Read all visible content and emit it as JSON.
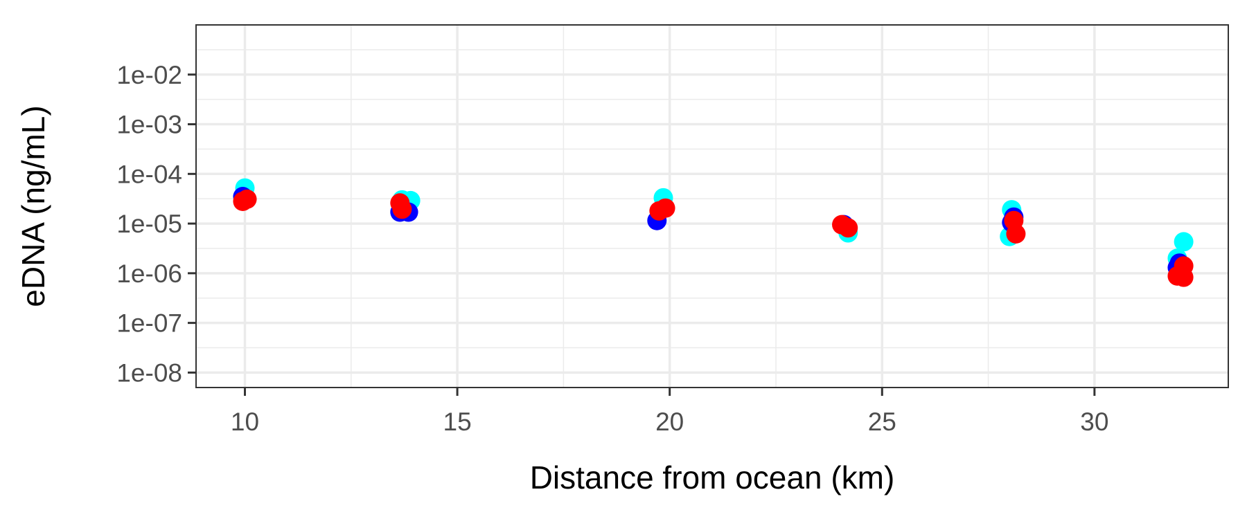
{
  "chart_data": {
    "type": "scatter",
    "title": "",
    "xlabel": "Distance from ocean (km)",
    "ylabel": "eDNA (ng/mL)",
    "x_ticks": [
      10,
      15,
      20,
      25,
      30
    ],
    "x_tick_labels": [
      "10",
      "15",
      "20",
      "25",
      "30"
    ],
    "xlim": [
      8.85,
      33.15
    ],
    "y_scale": "log",
    "y_ticks": [
      1e-08,
      1e-07,
      1e-06,
      1e-05,
      0.0001,
      0.001,
      0.01
    ],
    "y_tick_labels": [
      "1e-08",
      "1e-07",
      "1e-06",
      "1e-05",
      "1e-04",
      "1e-03",
      "1e-02"
    ],
    "ylim": [
      5e-09,
      0.1
    ],
    "grid": true,
    "legend": "none",
    "series": [
      {
        "color": "#00FFFF",
        "points": [
          {
            "x": 10.0,
            "y": 5.2e-05
          },
          {
            "x": 13.7,
            "y": 3e-05
          },
          {
            "x": 13.9,
            "y": 2.9e-05
          },
          {
            "x": 19.85,
            "y": 3.3e-05
          },
          {
            "x": 24.2,
            "y": 6.5e-06
          },
          {
            "x": 28.05,
            "y": 1.9e-05
          },
          {
            "x": 28.0,
            "y": 5.5e-06
          },
          {
            "x": 32.1,
            "y": 4.3e-06
          },
          {
            "x": 31.95,
            "y": 2e-06
          }
        ]
      },
      {
        "color": "#0000FF",
        "points": [
          {
            "x": 9.95,
            "y": 3.5e-05
          },
          {
            "x": 13.65,
            "y": 1.7e-05
          },
          {
            "x": 13.85,
            "y": 1.7e-05
          },
          {
            "x": 19.7,
            "y": 1.15e-05
          },
          {
            "x": 24.1,
            "y": 9.5e-06
          },
          {
            "x": 28.1,
            "y": 1.35e-05
          },
          {
            "x": 28.05,
            "y": 1.05e-05
          },
          {
            "x": 31.95,
            "y": 1.3e-06
          },
          {
            "x": 32.0,
            "y": 1.6e-06
          }
        ]
      },
      {
        "color": "#FF0000",
        "points": [
          {
            "x": 9.95,
            "y": 2.8e-05
          },
          {
            "x": 10.05,
            "y": 3.1e-05
          },
          {
            "x": 13.65,
            "y": 2.6e-05
          },
          {
            "x": 13.7,
            "y": 1.95e-05
          },
          {
            "x": 19.75,
            "y": 1.8e-05
          },
          {
            "x": 19.9,
            "y": 2.05e-05
          },
          {
            "x": 24.05,
            "y": 9.5e-06
          },
          {
            "x": 24.2,
            "y": 8.2e-06
          },
          {
            "x": 28.1,
            "y": 1.15e-05
          },
          {
            "x": 28.15,
            "y": 6.2e-06
          },
          {
            "x": 31.95,
            "y": 8.8e-07
          },
          {
            "x": 32.1,
            "y": 8.3e-07
          },
          {
            "x": 32.1,
            "y": 1.4e-06
          }
        ]
      }
    ]
  }
}
